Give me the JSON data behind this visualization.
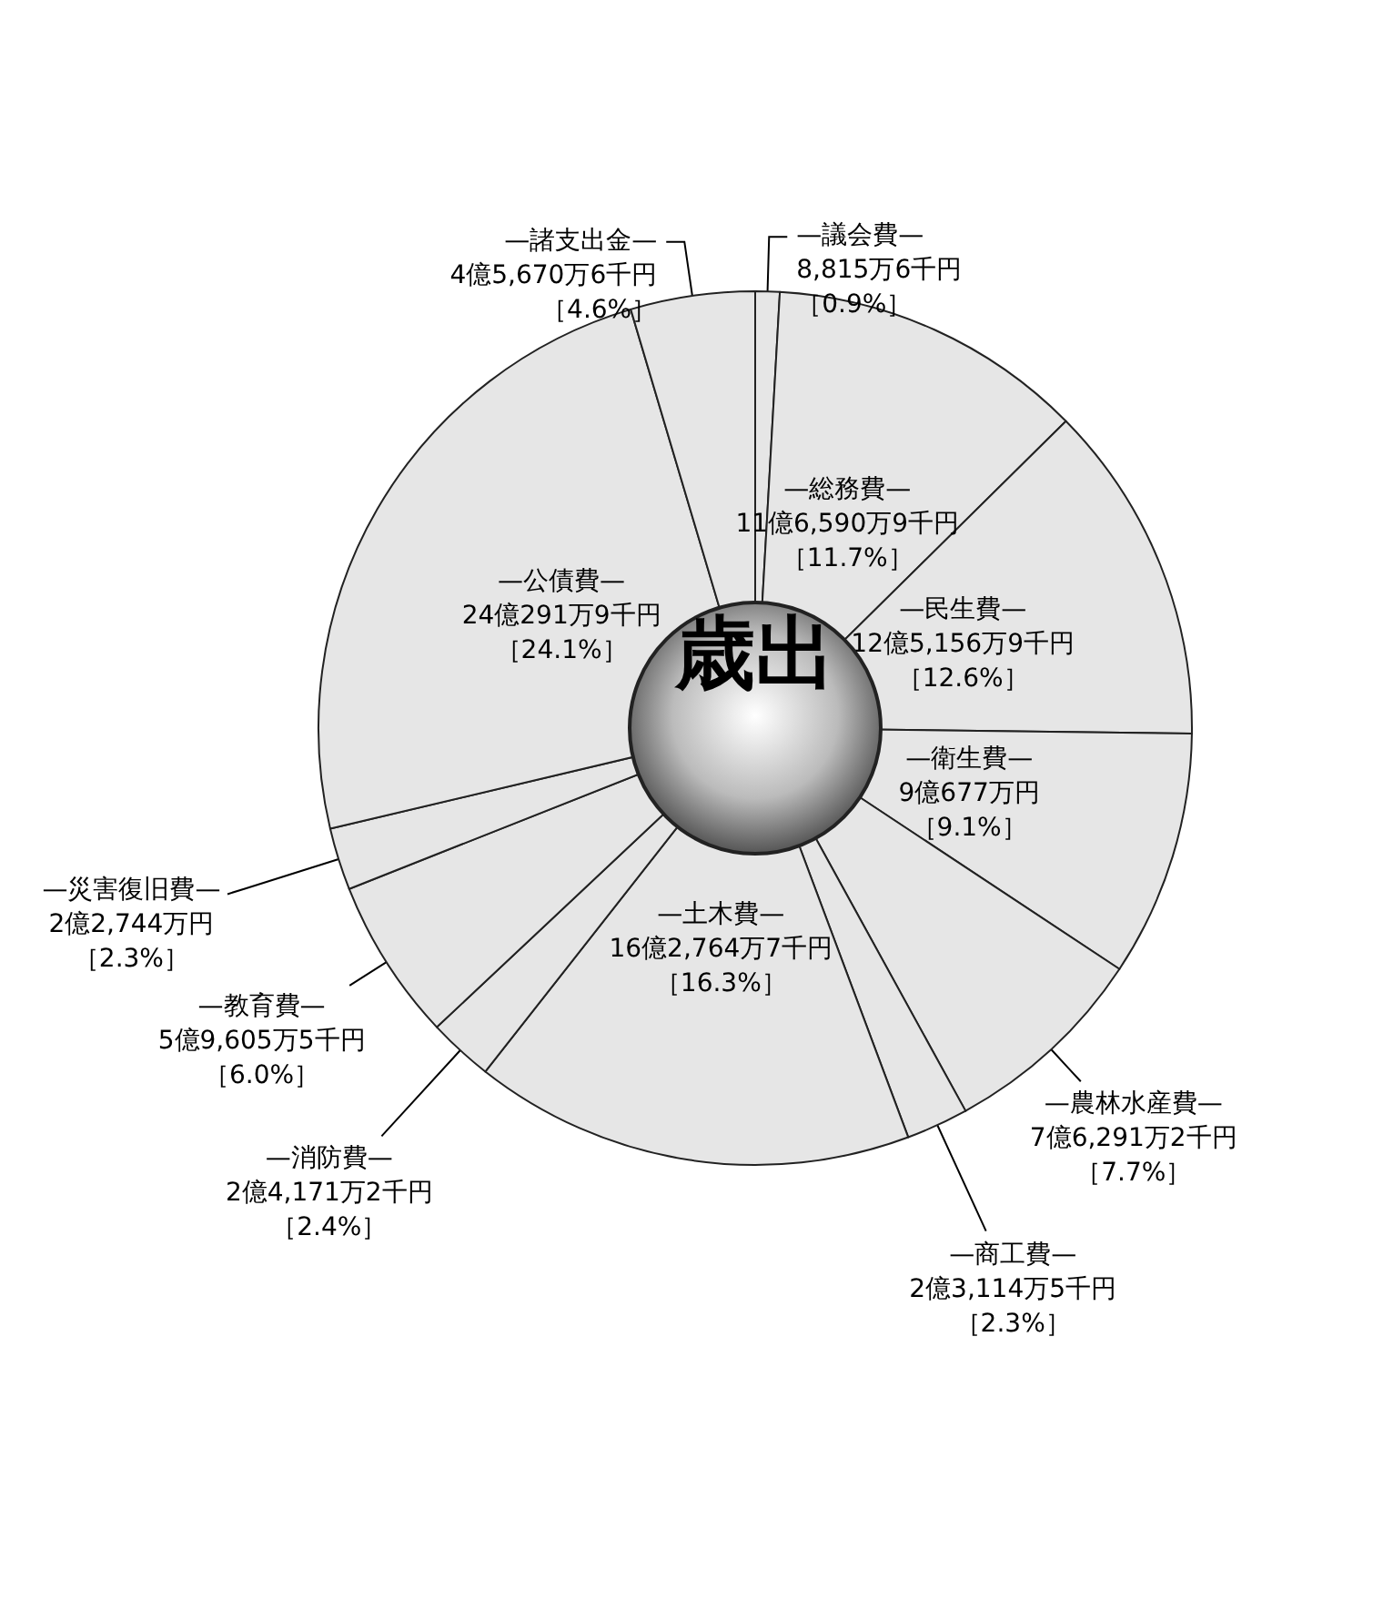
{
  "chart_data": {
    "type": "pie",
    "title": "歳出",
    "categories": [
      "—議会費—",
      "—総務費—",
      "—民生費—",
      "—衛生費—",
      "—農林水産費—",
      "—商工費—",
      "—土木費—",
      "—消防費—",
      "—教育費—",
      "—災害復旧費—",
      "—公債費—",
      "—諸支出金—"
    ],
    "values": [
      0.9,
      11.7,
      12.6,
      9.1,
      7.7,
      2.3,
      16.3,
      2.4,
      6.0,
      2.3,
      24.1,
      4.6
    ],
    "value_labels": [
      "8,815万6千円［0.9%］",
      "11億6,590万9千円［11.7%］",
      "12億5,156万9千円［12.6%］",
      "9億677万円［9.1%］",
      "7億6,291万2千円［7.7%］",
      "2億3,114万5千円［2.3%］",
      "16億2,764万7千円［16.3%］",
      "2億4,171万2千円［2.4%］",
      "5億9,605万5千円［6.0%］",
      "2億2,744万円［2.3%］",
      "24億291万9千円［24.1%］",
      "4億5,670万6千円［4.6%］"
    ],
    "colors": [
      "#e6e6e6",
      "#e6e6e6",
      "#e6e6e6",
      "#e6e6e6",
      "#e6e6e6",
      "#e6e6e6",
      "#e6e6e6",
      "#e6e6e6",
      "#e6e6e6",
      "#e6e6e6",
      "#e6e6e6",
      "#e6e6e6"
    ],
    "legend": false
  }
}
